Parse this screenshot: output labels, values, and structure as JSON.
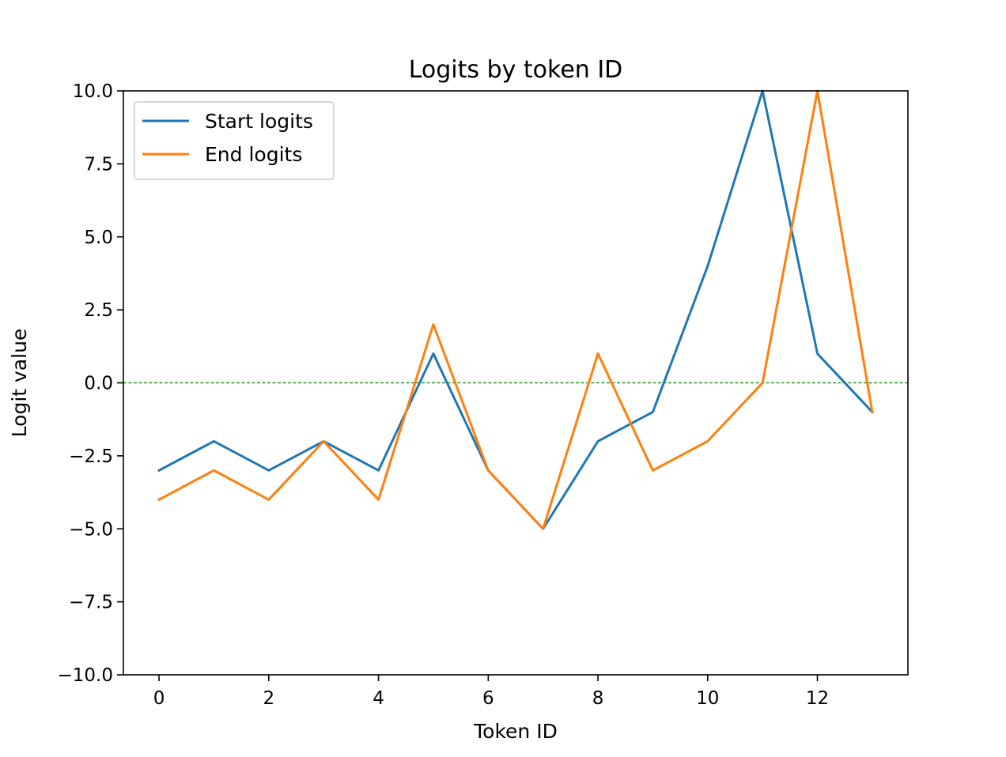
{
  "chart_data": {
    "type": "line",
    "title": "Logits by token ID",
    "xlabel": "Token ID",
    "ylabel": "Logit value",
    "x": [
      0,
      1,
      2,
      3,
      4,
      5,
      6,
      7,
      8,
      9,
      10,
      11,
      12,
      13
    ],
    "xticks": [
      0,
      2,
      4,
      6,
      8,
      10,
      12
    ],
    "xtick_labels": [
      "0",
      "2",
      "4",
      "6",
      "8",
      "10",
      "12"
    ],
    "xlim": [
      -0.65,
      13.65
    ],
    "ylim": [
      -10,
      10
    ],
    "yticks": [
      -10,
      -7.5,
      -5,
      -2.5,
      0,
      2.5,
      5,
      7.5,
      10
    ],
    "ytick_labels": [
      "−10.0",
      "−7.5",
      "−5.0",
      "−2.5",
      "0.0",
      "2.5",
      "5.0",
      "7.5",
      "10.0"
    ],
    "grid": false,
    "legend_position": "upper-left",
    "series": [
      {
        "name": "Start logits",
        "color": "#1f77b4",
        "values": [
          -3,
          -2,
          -3,
          -2,
          -3,
          1,
          -3,
          -5,
          -2,
          -1,
          4,
          10,
          1,
          -1
        ]
      },
      {
        "name": "End logits",
        "color": "#ff7f0e",
        "values": [
          -4,
          -3,
          -4,
          -2,
          -4,
          2,
          -3,
          -5,
          1,
          -3,
          -2,
          0,
          10,
          -1
        ]
      }
    ],
    "reference_line": {
      "y": 0,
      "color": "#008000",
      "style": "dashed"
    }
  }
}
